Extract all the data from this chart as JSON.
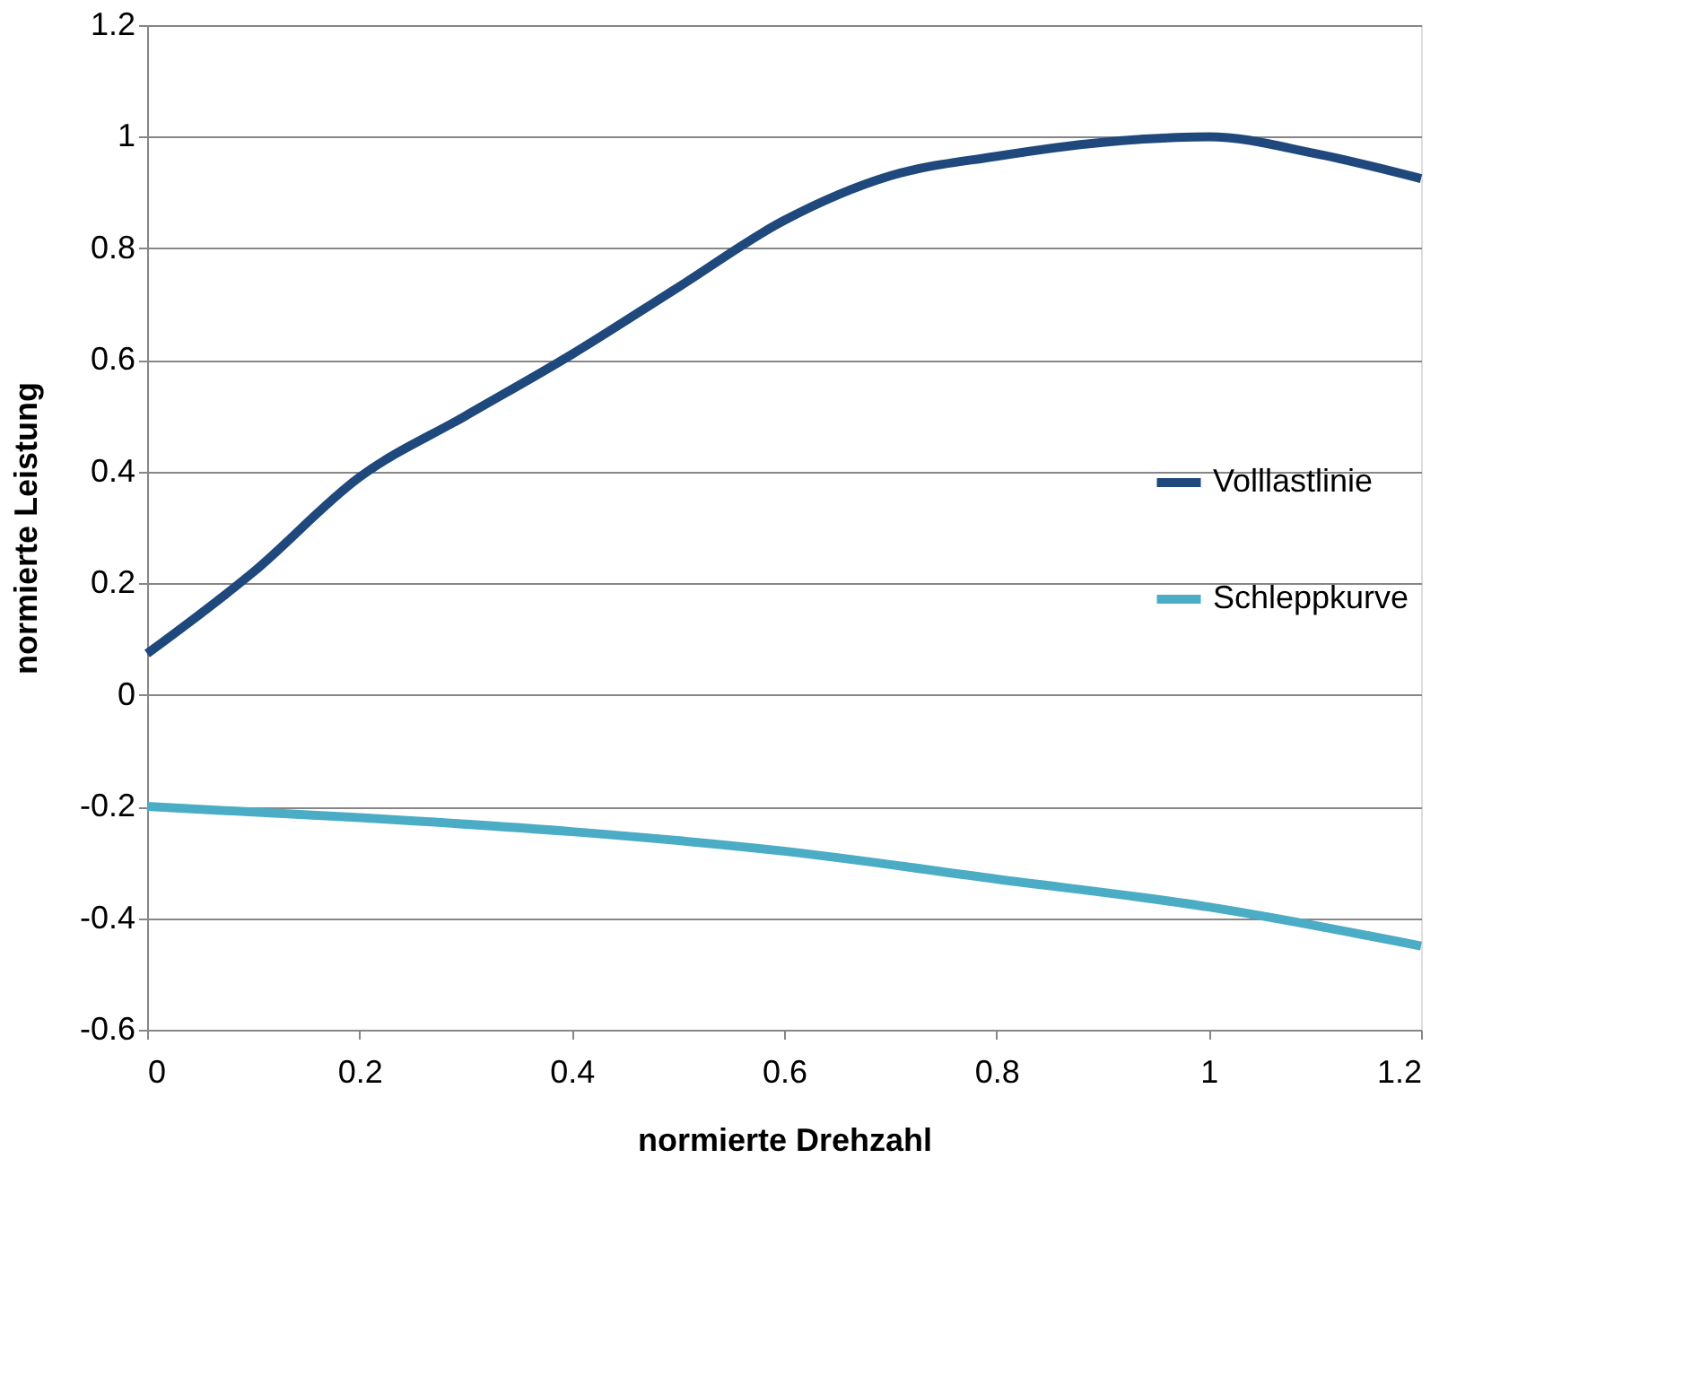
{
  "chart_data": {
    "type": "line",
    "xlabel": "normierte Drehzahl",
    "ylabel": "normierte Leistung",
    "xlim": [
      0,
      1.2
    ],
    "xticks": [
      0,
      0.2,
      0.4,
      0.6,
      0.8,
      1,
      1.2
    ],
    "ylim": [
      -0.6,
      1.2
    ],
    "yticks": [
      -0.6,
      -0.4,
      -0.2,
      0,
      0.2,
      0.4,
      0.6,
      0.8,
      1,
      1.2
    ],
    "grid": "y",
    "legend": "right",
    "marker": "none",
    "line_style": "solid",
    "series": [
      {
        "name": "Volllastlinie",
        "color": "#1f497d",
        "x": [
          0,
          0.1,
          0.2,
          0.3,
          0.4,
          0.5,
          0.6,
          0.7,
          0.8,
          0.9,
          1.0,
          1.1,
          1.2
        ],
        "values": [
          0.074,
          0.22,
          0.39,
          0.5,
          0.61,
          0.73,
          0.85,
          0.93,
          0.965,
          0.99,
          1.0,
          0.97,
          0.925
        ]
      },
      {
        "name": "Schleppkurve",
        "color": "#4bacc6",
        "x": [
          0,
          0.2,
          0.4,
          0.6,
          0.8,
          1.0,
          1.2
        ],
        "values": [
          -0.2,
          -0.22,
          -0.245,
          -0.28,
          -0.33,
          -0.38,
          -0.45
        ]
      }
    ]
  }
}
